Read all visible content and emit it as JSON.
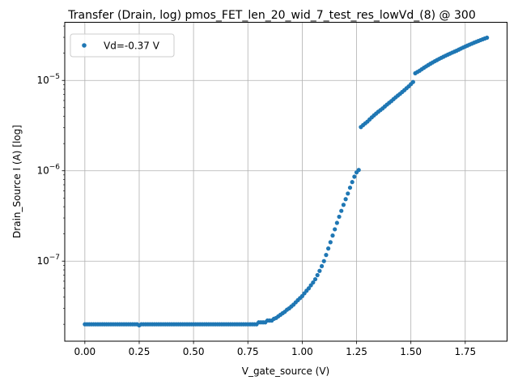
{
  "chart_data": {
    "type": "scatter",
    "title": "Transfer (Drain, log) pmos_FET_len_20_wid_7_test_res_lowVd_(8) @ 300",
    "xlabel": "V_gate_source (V)",
    "ylabel": "Drain_Source I (A) [log]",
    "xlim": [
      -0.0925,
      1.9425
    ],
    "ylim": [
      1.3e-08,
      4.4e-05
    ],
    "yscale": "log",
    "grid": true,
    "legend_position": "top-left",
    "x_ticks": [
      "0.00",
      "0.25",
      "0.50",
      "0.75",
      "1.00",
      "1.25",
      "1.50",
      "1.75"
    ],
    "x_tick_values": [
      0,
      0.25,
      0.5,
      0.75,
      1.0,
      1.25,
      1.5,
      1.75
    ],
    "y_ticks": [
      {
        "base": "10",
        "exp": "−7",
        "value": 1e-07
      },
      {
        "base": "10",
        "exp": "−6",
        "value": 1e-06
      },
      {
        "base": "10",
        "exp": "−5",
        "value": 1e-05
      }
    ],
    "series": [
      {
        "name": "Vd=-0.37 V",
        "color": "#1f77b4",
        "points": [
          [
            0.0,
            2e-08
          ],
          [
            0.01,
            2e-08
          ],
          [
            0.02,
            2e-08
          ],
          [
            0.03,
            2e-08
          ],
          [
            0.04,
            2e-08
          ],
          [
            0.05,
            2e-08
          ],
          [
            0.06,
            2e-08
          ],
          [
            0.07,
            2e-08
          ],
          [
            0.08,
            2e-08
          ],
          [
            0.09,
            2e-08
          ],
          [
            0.1,
            2e-08
          ],
          [
            0.11,
            2e-08
          ],
          [
            0.12,
            2e-08
          ],
          [
            0.13,
            2e-08
          ],
          [
            0.14,
            2e-08
          ],
          [
            0.15,
            2e-08
          ],
          [
            0.16,
            2e-08
          ],
          [
            0.17,
            2e-08
          ],
          [
            0.18,
            2e-08
          ],
          [
            0.19,
            2e-08
          ],
          [
            0.2,
            2e-08
          ],
          [
            0.21,
            2e-08
          ],
          [
            0.22,
            2e-08
          ],
          [
            0.23,
            2e-08
          ],
          [
            0.24,
            2e-08
          ],
          [
            0.25,
            1.95e-08
          ],
          [
            0.26,
            2e-08
          ],
          [
            0.27,
            2e-08
          ],
          [
            0.28,
            2e-08
          ],
          [
            0.29,
            2e-08
          ],
          [
            0.3,
            2e-08
          ],
          [
            0.31,
            2e-08
          ],
          [
            0.32,
            2e-08
          ],
          [
            0.33,
            2e-08
          ],
          [
            0.34,
            2e-08
          ],
          [
            0.35,
            2e-08
          ],
          [
            0.36,
            2e-08
          ],
          [
            0.37,
            2e-08
          ],
          [
            0.38,
            2e-08
          ],
          [
            0.39,
            2e-08
          ],
          [
            0.4,
            2e-08
          ],
          [
            0.41,
            2e-08
          ],
          [
            0.42,
            2e-08
          ],
          [
            0.43,
            2e-08
          ],
          [
            0.44,
            2e-08
          ],
          [
            0.45,
            2e-08
          ],
          [
            0.46,
            2e-08
          ],
          [
            0.47,
            2e-08
          ],
          [
            0.48,
            2e-08
          ],
          [
            0.49,
            2e-08
          ],
          [
            0.5,
            2e-08
          ],
          [
            0.51,
            2e-08
          ],
          [
            0.52,
            2e-08
          ],
          [
            0.53,
            2e-08
          ],
          [
            0.54,
            2e-08
          ],
          [
            0.55,
            2e-08
          ],
          [
            0.56,
            2e-08
          ],
          [
            0.57,
            2e-08
          ],
          [
            0.58,
            2e-08
          ],
          [
            0.59,
            2e-08
          ],
          [
            0.6,
            2e-08
          ],
          [
            0.61,
            2e-08
          ],
          [
            0.62,
            2e-08
          ],
          [
            0.63,
            2e-08
          ],
          [
            0.64,
            2e-08
          ],
          [
            0.65,
            2e-08
          ],
          [
            0.66,
            2e-08
          ],
          [
            0.67,
            2e-08
          ],
          [
            0.68,
            2e-08
          ],
          [
            0.69,
            2e-08
          ],
          [
            0.7,
            2e-08
          ],
          [
            0.71,
            2e-08
          ],
          [
            0.72,
            2e-08
          ],
          [
            0.73,
            2e-08
          ],
          [
            0.74,
            2e-08
          ],
          [
            0.75,
            2e-08
          ],
          [
            0.76,
            2e-08
          ],
          [
            0.77,
            2e-08
          ],
          [
            0.78,
            2e-08
          ],
          [
            0.79,
            2e-08
          ],
          [
            0.8,
            2.1e-08
          ],
          [
            0.81,
            2.1e-08
          ],
          [
            0.82,
            2.1e-08
          ],
          [
            0.83,
            2.1e-08
          ],
          [
            0.84,
            2.2e-08
          ],
          [
            0.85,
            2.2e-08
          ],
          [
            0.86,
            2.2e-08
          ],
          [
            0.87,
            2.3e-08
          ],
          [
            0.88,
            2.35e-08
          ],
          [
            0.89,
            2.45e-08
          ],
          [
            0.9,
            2.55e-08
          ],
          [
            0.91,
            2.65e-08
          ],
          [
            0.92,
            2.75e-08
          ],
          [
            0.93,
            2.9e-08
          ],
          [
            0.94,
            3e-08
          ],
          [
            0.95,
            3.15e-08
          ],
          [
            0.96,
            3.3e-08
          ],
          [
            0.97,
            3.5e-08
          ],
          [
            0.98,
            3.7e-08
          ],
          [
            0.99,
            3.9e-08
          ],
          [
            1.0,
            4.1e-08
          ],
          [
            1.01,
            4.4e-08
          ],
          [
            1.02,
            4.7e-08
          ],
          [
            1.03,
            5e-08
          ],
          [
            1.04,
            5.4e-08
          ],
          [
            1.05,
            5.8e-08
          ],
          [
            1.06,
            6.3e-08
          ],
          [
            1.07,
            7e-08
          ],
          [
            1.08,
            7.8e-08
          ],
          [
            1.09,
            8.8e-08
          ],
          [
            1.1,
            1e-07
          ],
          [
            1.11,
            1.17e-07
          ],
          [
            1.12,
            1.38e-07
          ],
          [
            1.13,
            1.62e-07
          ],
          [
            1.14,
            1.92e-07
          ],
          [
            1.15,
            2.25e-07
          ],
          [
            1.16,
            2.65e-07
          ],
          [
            1.17,
            3.1e-07
          ],
          [
            1.18,
            3.6e-07
          ],
          [
            1.19,
            4.2e-07
          ],
          [
            1.2,
            4.85e-07
          ],
          [
            1.21,
            5.6e-07
          ],
          [
            1.22,
            6.5e-07
          ],
          [
            1.23,
            7.5e-07
          ],
          [
            1.24,
            8.6e-07
          ],
          [
            1.25,
            9.6e-07
          ],
          [
            1.26,
            1.02e-06
          ],
          [
            1.27,
            3.05e-06
          ],
          [
            1.28,
            3.2e-06
          ],
          [
            1.29,
            3.35e-06
          ],
          [
            1.3,
            3.5e-06
          ],
          [
            1.31,
            3.7e-06
          ],
          [
            1.32,
            3.9e-06
          ],
          [
            1.33,
            4.1e-06
          ],
          [
            1.34,
            4.3e-06
          ],
          [
            1.35,
            4.5e-06
          ],
          [
            1.36,
            4.7e-06
          ],
          [
            1.37,
            4.9e-06
          ],
          [
            1.38,
            5.15e-06
          ],
          [
            1.39,
            5.4e-06
          ],
          [
            1.4,
            5.65e-06
          ],
          [
            1.41,
            5.9e-06
          ],
          [
            1.42,
            6.2e-06
          ],
          [
            1.43,
            6.5e-06
          ],
          [
            1.44,
            6.8e-06
          ],
          [
            1.45,
            7.1e-06
          ],
          [
            1.46,
            7.45e-06
          ],
          [
            1.47,
            7.8e-06
          ],
          [
            1.48,
            8.2e-06
          ],
          [
            1.49,
            8.6e-06
          ],
          [
            1.5,
            9.1e-06
          ],
          [
            1.51,
            9.6e-06
          ],
          [
            1.52,
            1.2e-05
          ],
          [
            1.53,
            1.24e-05
          ],
          [
            1.54,
            1.28e-05
          ],
          [
            1.55,
            1.33e-05
          ],
          [
            1.56,
            1.38e-05
          ],
          [
            1.57,
            1.43e-05
          ],
          [
            1.58,
            1.48e-05
          ],
          [
            1.59,
            1.53e-05
          ],
          [
            1.6,
            1.58e-05
          ],
          [
            1.61,
            1.63e-05
          ],
          [
            1.62,
            1.68e-05
          ],
          [
            1.63,
            1.73e-05
          ],
          [
            1.64,
            1.78e-05
          ],
          [
            1.65,
            1.83e-05
          ],
          [
            1.66,
            1.88e-05
          ],
          [
            1.67,
            1.93e-05
          ],
          [
            1.68,
            1.98e-05
          ],
          [
            1.69,
            2.03e-05
          ],
          [
            1.7,
            2.08e-05
          ],
          [
            1.71,
            2.13e-05
          ],
          [
            1.72,
            2.19e-05
          ],
          [
            1.73,
            2.25e-05
          ],
          [
            1.74,
            2.31e-05
          ],
          [
            1.75,
            2.37e-05
          ],
          [
            1.76,
            2.43e-05
          ],
          [
            1.77,
            2.49e-05
          ],
          [
            1.78,
            2.55e-05
          ],
          [
            1.79,
            2.61e-05
          ],
          [
            1.8,
            2.67e-05
          ],
          [
            1.81,
            2.73e-05
          ],
          [
            1.82,
            2.79e-05
          ],
          [
            1.83,
            2.85e-05
          ],
          [
            1.84,
            2.91e-05
          ],
          [
            1.85,
            2.97e-05
          ]
        ]
      }
    ]
  }
}
